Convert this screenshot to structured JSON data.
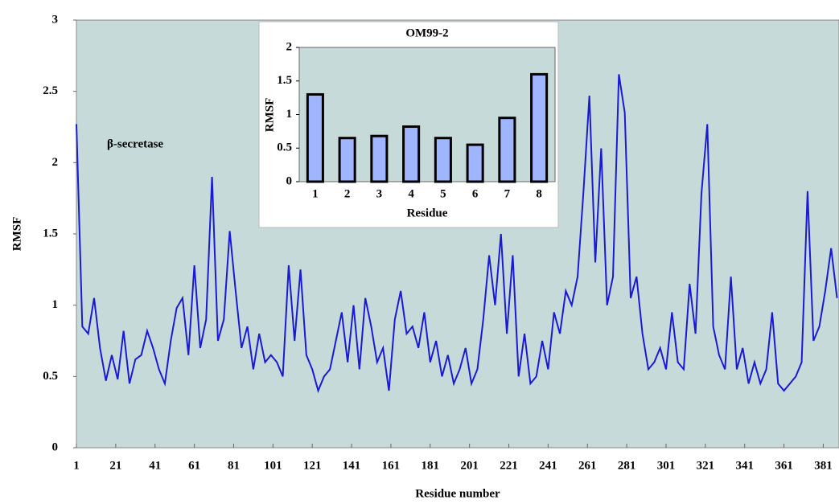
{
  "chart_data": [
    {
      "type": "line",
      "annotation": "β-secretase",
      "x_label": "Residue number",
      "y_label": "RMSF",
      "x": [
        1,
        4,
        7,
        10,
        13,
        16,
        19,
        22,
        25,
        28,
        31,
        34,
        37,
        40,
        43,
        46,
        49,
        52,
        55,
        58,
        61,
        64,
        67,
        70,
        73,
        76,
        79,
        82,
        85,
        88,
        91,
        94,
        97,
        100,
        103,
        106,
        109,
        112,
        115,
        118,
        121,
        124,
        127,
        130,
        133,
        136,
        139,
        142,
        145,
        148,
        151,
        154,
        157,
        160,
        163,
        166,
        169,
        172,
        175,
        178,
        181,
        184,
        187,
        190,
        193,
        196,
        199,
        202,
        205,
        208,
        211,
        214,
        217,
        220,
        223,
        226,
        229,
        232,
        235,
        238,
        241,
        244,
        247,
        250,
        253,
        256,
        259,
        262,
        265,
        268,
        271,
        274,
        277,
        280,
        283,
        286,
        289,
        292,
        295,
        298,
        301,
        304,
        307,
        310,
        313,
        316,
        319,
        322,
        325,
        328,
        331,
        334,
        337,
        340,
        343,
        346,
        349,
        352,
        355,
        358,
        361,
        364,
        367,
        370,
        373,
        376,
        379,
        382,
        385,
        388
      ],
      "series": [
        {
          "name": "RMSF",
          "color": "#1a1ad6",
          "values": [
            2.27,
            0.85,
            0.8,
            1.05,
            0.7,
            0.47,
            0.65,
            0.48,
            0.82,
            0.45,
            0.62,
            0.65,
            0.82,
            0.7,
            0.55,
            0.45,
            0.75,
            0.98,
            1.05,
            0.65,
            1.28,
            0.7,
            0.9,
            1.9,
            0.75,
            0.9,
            1.52,
            1.1,
            0.7,
            0.85,
            0.55,
            0.8,
            0.6,
            0.65,
            0.6,
            0.5,
            1.28,
            0.75,
            1.25,
            0.65,
            0.55,
            0.4,
            0.5,
            0.55,
            0.75,
            0.95,
            0.6,
            1.0,
            0.55,
            1.05,
            0.85,
            0.6,
            0.7,
            0.4,
            0.9,
            1.1,
            0.8,
            0.85,
            0.7,
            0.95,
            0.6,
            0.75,
            0.5,
            0.65,
            0.45,
            0.55,
            0.7,
            0.45,
            0.55,
            0.9,
            1.35,
            1.0,
            1.5,
            0.8,
            1.35,
            0.5,
            0.8,
            0.45,
            0.5,
            0.75,
            0.55,
            0.95,
            0.8,
            1.1,
            1.0,
            1.2,
            1.8,
            2.47,
            1.3,
            2.1,
            1.0,
            1.2,
            2.62,
            2.35,
            1.05,
            1.2,
            0.8,
            0.55,
            0.6,
            0.7,
            0.55,
            0.95,
            0.6,
            0.55,
            1.15,
            0.8,
            1.78,
            2.27,
            0.85,
            0.65,
            0.55,
            1.2,
            0.55,
            0.7,
            0.45,
            0.6,
            0.45,
            0.55,
            0.95,
            0.45,
            0.4,
            0.45,
            0.5,
            0.6,
            1.8,
            0.75,
            0.85,
            1.1,
            1.4,
            1.05
          ]
        }
      ],
      "xlim": [
        1,
        389
      ],
      "xticks": [
        1,
        21,
        41,
        61,
        81,
        101,
        121,
        141,
        161,
        181,
        201,
        221,
        241,
        261,
        281,
        301,
        321,
        341,
        361,
        381
      ],
      "ylim": [
        0,
        3
      ],
      "yticks": [
        0,
        0.5,
        1,
        1.5,
        2,
        2.5,
        3
      ],
      "background": "#c6dad9"
    },
    {
      "type": "bar",
      "title": "OM99-2",
      "x_label": "Residue",
      "y_label": "RMSF",
      "categories": [
        "1",
        "2",
        "3",
        "4",
        "5",
        "6",
        "7",
        "8"
      ],
      "values": [
        1.3,
        0.65,
        0.68,
        0.82,
        0.65,
        0.55,
        0.95,
        1.6
      ],
      "color": "#9fb6ff",
      "ylim": [
        0,
        2
      ],
      "yticks": [
        0,
        0.5,
        1,
        1.5,
        2
      ],
      "background": "#c6dad9"
    }
  ]
}
